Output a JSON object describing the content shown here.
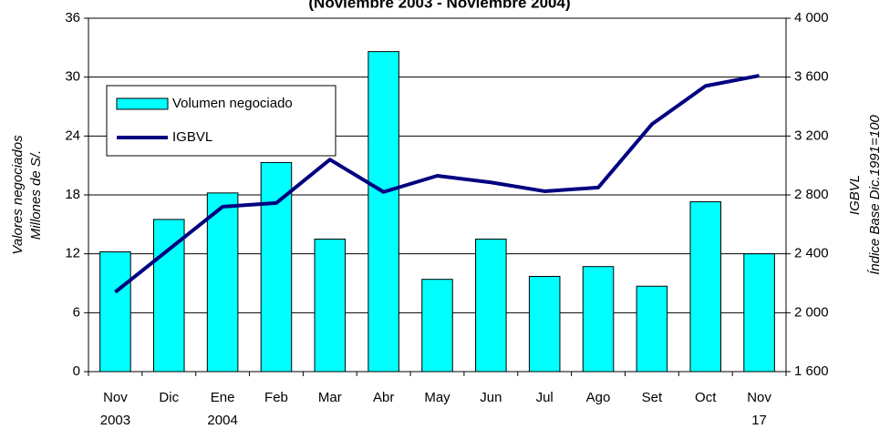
{
  "chart_data": {
    "type": "bar_line",
    "title": "(Noviembre 2003 - Noviembre 2004)",
    "y_axis_title": [
      "Valores negociados",
      "Millones de S/."
    ],
    "y2_axis_title": [
      "IGBVL",
      "Índice Base Dic.1991=100"
    ],
    "categories": [
      "Nov",
      "Dic",
      "Ene",
      "Feb",
      "Mar",
      "Abr",
      "May",
      "Jun",
      "Jul",
      "Ago",
      "Set",
      "Oct",
      "Nov"
    ],
    "category_sublabels": [
      "2003",
      null,
      "2004",
      null,
      null,
      null,
      null,
      null,
      null,
      null,
      null,
      null,
      "17"
    ],
    "series": [
      {
        "name": "Volumen negociado",
        "type": "bar",
        "color": "#00ffff",
        "values": [
          12.2,
          15.5,
          18.2,
          21.3,
          13.5,
          32.6,
          9.4,
          13.5,
          9.7,
          10.7,
          8.7,
          17.3,
          12.0
        ]
      },
      {
        "name": "IGBVL",
        "type": "line",
        "axis": "y2",
        "color": "#000080",
        "values": [
          2140,
          2430,
          2720,
          2745,
          3040,
          2820,
          2930,
          2885,
          2825,
          2850,
          3280,
          3540,
          3610
        ]
      }
    ],
    "ylim": [
      0,
      36
    ],
    "yticks": [
      0,
      6,
      12,
      18,
      24,
      30,
      36
    ],
    "y2lim": [
      1600,
      4000
    ],
    "y2ticks": [
      {
        "value": 1600,
        "label": "1 600"
      },
      {
        "value": 2000,
        "label": "2 000"
      },
      {
        "value": 2400,
        "label": "2 400"
      },
      {
        "value": 2800,
        "label": "2 800"
      },
      {
        "value": 3200,
        "label": "3 200"
      },
      {
        "value": 3600,
        "label": "3 600"
      },
      {
        "value": 4000,
        "label": "4 000"
      }
    ],
    "grid": true,
    "legend": "upper left"
  }
}
